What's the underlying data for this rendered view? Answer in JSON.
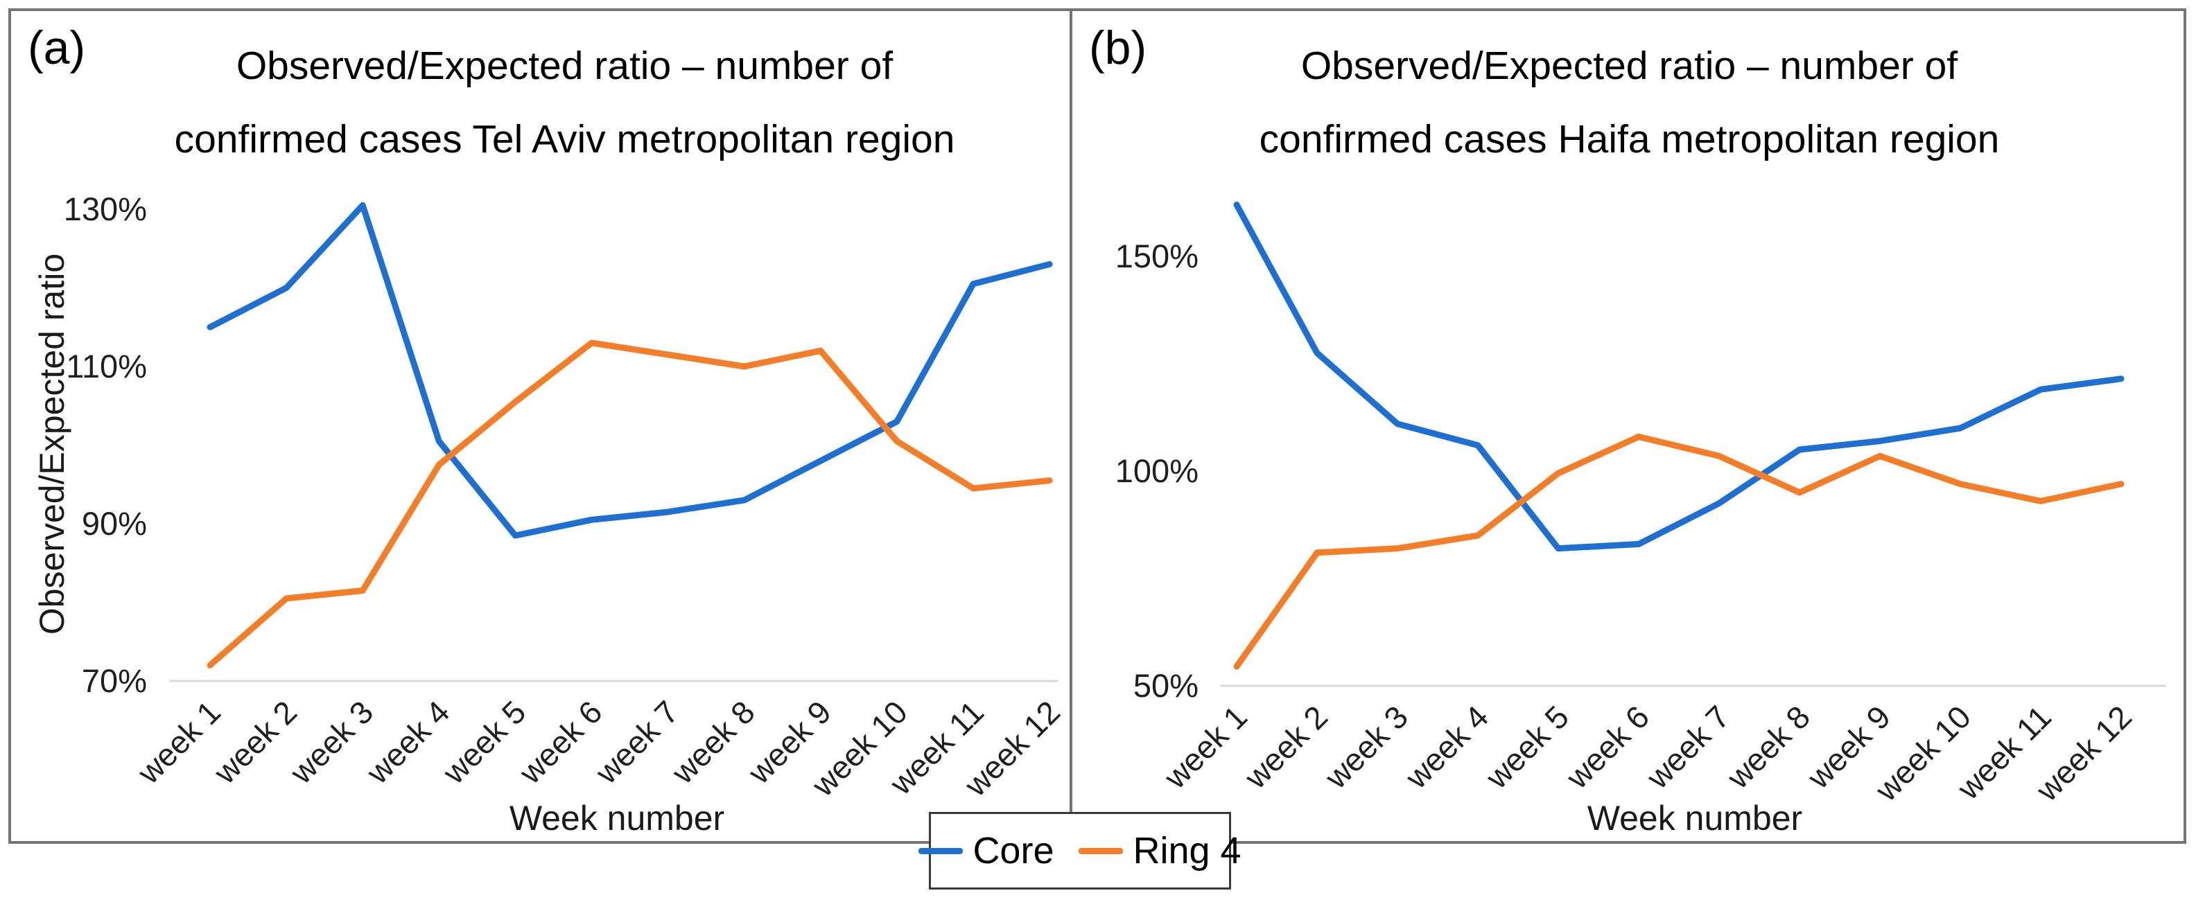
{
  "figure": {
    "panel_a": {
      "label": "(a)",
      "title_line1": "Observed/Expected ratio – number of",
      "title_line2": "confirmed cases Tel Aviv metropolitan region",
      "y_axis_title": "Observed/Expected ratio",
      "x_axis_title": "Week number"
    },
    "panel_b": {
      "label": "(b)",
      "title_line1": "Observed/Expected ratio – number of",
      "title_line2": "confirmed cases  Haifa metropolitan region",
      "x_axis_title": "Week number"
    },
    "colors": {
      "core_blue": "#1d6fd2",
      "ring4_orange": "#f47d28",
      "gridline_gray": "#d9d9d9",
      "border_gray": "#767676"
    }
  },
  "chart_data": [
    {
      "type": "line",
      "panel": "a",
      "title": "Observed/Expected ratio – number of confirmed cases Tel Aviv metropolitan region",
      "xlabel": "Week number",
      "ylabel": "Observed/Expected ratio",
      "categories": [
        "week 1",
        "week 2",
        "week 3",
        "week 4",
        "week 5",
        "week 6",
        "week 7",
        "week 8",
        "week 9",
        "week 10",
        "week 11",
        "week 12"
      ],
      "series": [
        {
          "name": "Core",
          "color": "#1d6fd2",
          "values": [
            115,
            120,
            130.5,
            100.5,
            88.5,
            90.5,
            91.5,
            93,
            98,
            103,
            120.5,
            123
          ]
        },
        {
          "name": "Ring 4",
          "color": "#f47d28",
          "values": [
            72,
            80.5,
            81.5,
            97.5,
            105.5,
            113,
            111.5,
            110,
            112,
            100.5,
            94.5,
            95.5
          ]
        }
      ],
      "y_ticks": [
        "70%",
        "90%",
        "110%",
        "130%"
      ],
      "y_tick_values": [
        70,
        90,
        110,
        130
      ],
      "ylim": [
        70,
        135.5
      ],
      "grid": "horizontal gridline at axis minimum only",
      "legend_position": "shared bottom center"
    },
    {
      "type": "line",
      "panel": "b",
      "title": "Observed/Expected ratio – number of confirmed cases  Haifa metropolitan region",
      "xlabel": "Week number",
      "ylabel": "",
      "categories": [
        "week 1",
        "week 2",
        "week 3",
        "week 4",
        "week 5",
        "week 6",
        "week 7",
        "week 8",
        "week 9",
        "week 10",
        "week 11",
        "week 12"
      ],
      "series": [
        {
          "name": "Core",
          "color": "#1d6fd2",
          "values": [
            162,
            127.5,
            111,
            106,
            82,
            83,
            92.5,
            105,
            107,
            110,
            119,
            121.5
          ]
        },
        {
          "name": "Ring 4",
          "color": "#f47d28",
          "values": [
            54.5,
            81,
            82,
            85,
            99.5,
            108,
            103.5,
            95,
            103.5,
            97,
            93,
            97
          ]
        }
      ],
      "y_ticks": [
        "50%",
        "100%",
        "150%"
      ],
      "y_tick_values": [
        50,
        100,
        150
      ],
      "ylim": [
        50,
        165
      ],
      "grid": "horizontal gridline at axis minimum only",
      "legend_position": "shared bottom center"
    }
  ]
}
